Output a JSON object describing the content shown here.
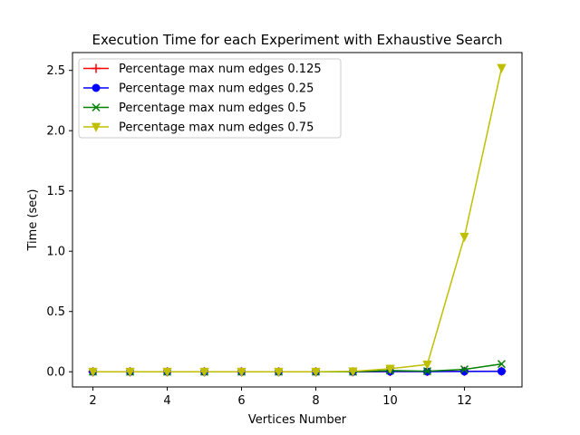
{
  "chart_data": {
    "type": "line",
    "title": "Execution Time for each Experiment with Exhaustive Search",
    "xlabel": "Vertices Number",
    "ylabel": "Time (sec)",
    "xlim": [
      1.45,
      13.55
    ],
    "ylim": [
      -0.126,
      2.648
    ],
    "xticks": [
      2,
      4,
      6,
      8,
      10,
      12
    ],
    "yticks": [
      0.0,
      0.5,
      1.0,
      1.5,
      2.0,
      2.5
    ],
    "ytick_labels": [
      "0.0",
      "0.5",
      "1.0",
      "1.5",
      "2.0",
      "2.5"
    ],
    "grid": false,
    "legend_position": "top-left",
    "x": [
      2,
      3,
      4,
      5,
      6,
      7,
      8,
      9,
      10,
      11,
      12,
      13
    ],
    "series": [
      {
        "name": "Percentage max num edges 0.125",
        "color": "#ff0000",
        "marker": "plus",
        "values": [
          0,
          0,
          0,
          0,
          0,
          0,
          0,
          0,
          0.002,
          0.003,
          0.004,
          0.005
        ]
      },
      {
        "name": "Percentage max num edges 0.25",
        "color": "#0000ff",
        "marker": "circle",
        "values": [
          0,
          0,
          0,
          0,
          0,
          0,
          0,
          0,
          0.003,
          0.002,
          0.003,
          0.004
        ]
      },
      {
        "name": "Percentage max num edges 0.5",
        "color": "#008000",
        "marker": "x",
        "values": [
          0,
          0,
          0,
          0,
          0,
          0,
          0,
          0,
          0.01,
          0.005,
          0.02,
          0.065
        ]
      },
      {
        "name": "Percentage max num edges 0.75",
        "color": "#bfbf00",
        "marker": "triangle-down",
        "values": [
          0,
          0,
          0,
          0,
          0,
          0,
          0,
          0.003,
          0.025,
          0.06,
          1.12,
          2.52
        ]
      }
    ]
  }
}
